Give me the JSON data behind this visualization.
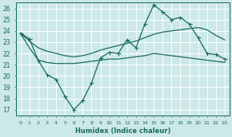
{
  "xlabel": "Humidex (Indice chaleur)",
  "bg_color": "#cce8e8",
  "grid_color": "#ffffff",
  "line_color": "#1a6b5a",
  "xlim": [
    -0.5,
    23.5
  ],
  "ylim": [
    16.5,
    26.5
  ],
  "yticks": [
    17,
    18,
    19,
    20,
    21,
    22,
    23,
    24,
    25,
    26
  ],
  "xticks": [
    0,
    1,
    2,
    3,
    4,
    5,
    6,
    7,
    8,
    9,
    10,
    11,
    12,
    13,
    14,
    15,
    16,
    17,
    18,
    19,
    20,
    21,
    22,
    23
  ],
  "line1_x": [
    0,
    1,
    2,
    3,
    4,
    5,
    6,
    7,
    8,
    9,
    10,
    11,
    12,
    13,
    14,
    15,
    16,
    17,
    18,
    19,
    20,
    21,
    22,
    23
  ],
  "line1_y": [
    23.8,
    23.3,
    21.4,
    20.1,
    19.7,
    18.2,
    17.0,
    17.8,
    19.4,
    21.6,
    22.1,
    22.0,
    23.2,
    22.5,
    24.6,
    26.3,
    25.7,
    25.0,
    25.2,
    24.6,
    23.4,
    22.0,
    21.9,
    21.5
  ],
  "line2_x": [
    0,
    1,
    2,
    3,
    4,
    5,
    6,
    7,
    8,
    9,
    10,
    11,
    12,
    13,
    14,
    15,
    16,
    17,
    18,
    19,
    20,
    21,
    22,
    23
  ],
  "line2_y": [
    23.8,
    23.1,
    22.5,
    22.2,
    22.0,
    21.8,
    21.7,
    21.8,
    22.0,
    22.3,
    22.5,
    22.7,
    22.9,
    23.1,
    23.4,
    23.7,
    23.9,
    24.0,
    24.1,
    24.2,
    24.3,
    24.1,
    23.6,
    23.2
  ],
  "line3_x": [
    0,
    1,
    2,
    3,
    4,
    5,
    6,
    7,
    8,
    9,
    10,
    11,
    12,
    13,
    14,
    15,
    16,
    17,
    18,
    19,
    20,
    21,
    22,
    23
  ],
  "line3_y": [
    23.8,
    22.5,
    21.4,
    21.2,
    21.1,
    21.1,
    21.1,
    21.2,
    21.3,
    21.4,
    21.5,
    21.5,
    21.6,
    21.7,
    21.8,
    22.0,
    21.9,
    21.8,
    21.7,
    21.6,
    21.5,
    21.4,
    21.3,
    21.2
  ]
}
